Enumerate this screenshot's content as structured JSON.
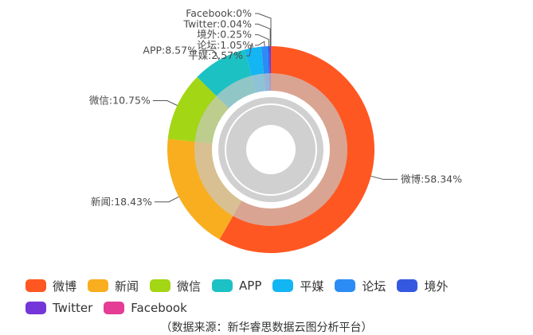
{
  "chart_data": {
    "type": "pie",
    "variant": "nested-donut",
    "title": "",
    "series": [
      {
        "categories": [
          "微博",
          "新闻",
          "微信",
          "APP",
          "平媒",
          "论坛",
          "境外",
          "Twitter",
          "Facebook"
        ],
        "values": [
          58.34,
          18.43,
          10.75,
          8.57,
          2.57,
          1.05,
          0.25,
          0.04,
          0
        ],
        "labels": [
          "微博:58.34%",
          "新闻:18.43%",
          "微信:10.75%",
          "APP:8.57%",
          "平媒:2.57%",
          "论坛:1.05%",
          "境外:0.25%",
          "Twitter:0.04%",
          "Facebook:0%"
        ],
        "colors": [
          "#ff5722",
          "#f9ae1f",
          "#a3d614",
          "#1cc1c4",
          "#13b5f2",
          "#2b8cf6",
          "#3458e0",
          "#7435d9",
          "#e53c95"
        ]
      }
    ],
    "legend": {
      "position": "bottom",
      "items": [
        "微博",
        "新闻",
        "微信",
        "APP",
        "平媒",
        "论坛",
        "境外",
        "Twitter",
        "Facebook"
      ]
    }
  },
  "source_text": "（数据来源：新华睿思数据云图分析平台）"
}
